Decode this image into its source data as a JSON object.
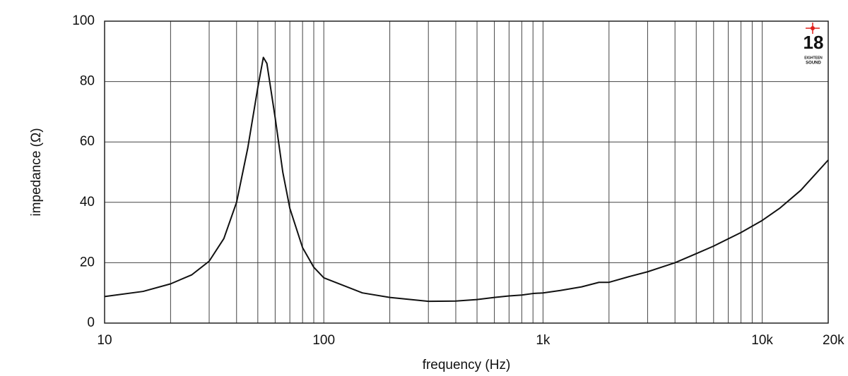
{
  "chart_data": {
    "type": "line",
    "xlabel": "frequency (Hz)",
    "ylabel": "impedance (Ω)",
    "xscale": "log",
    "xlim": [
      10,
      20000
    ],
    "xticks": [
      10,
      100,
      {
        "value": 1000,
        "label": "1k"
      },
      {
        "value": 10000,
        "label": "10k"
      },
      {
        "value": 20000,
        "label": "20k"
      }
    ],
    "xminor": [
      20,
      30,
      40,
      50,
      60,
      70,
      80,
      90,
      200,
      300,
      400,
      500,
      600,
      700,
      800,
      900,
      2000,
      3000,
      4000,
      5000,
      6000,
      7000,
      8000,
      9000
    ],
    "ylim": [
      0,
      100
    ],
    "yticks": [
      0,
      20,
      40,
      60,
      80,
      100
    ],
    "grid": true,
    "series": [
      {
        "color": "#111111",
        "x": [
          10,
          15,
          20,
          25,
          30,
          35,
          40,
          45,
          50,
          53,
          55,
          60,
          65,
          70,
          80,
          90,
          100,
          150,
          200,
          300,
          400,
          500,
          600,
          700,
          800,
          900,
          1000,
          1200,
          1500,
          1800,
          2000,
          2500,
          3000,
          4000,
          5000,
          6000,
          8000,
          10000,
          12000,
          15000,
          20000
        ],
        "values": [
          8.8,
          10.5,
          13,
          16,
          20.5,
          28,
          40,
          58,
          78,
          88,
          86,
          68,
          50,
          38,
          25,
          18.5,
          15,
          10,
          8.5,
          7.2,
          7.3,
          7.8,
          8.5,
          9,
          9.3,
          9.8,
          10,
          10.8,
          12,
          13.5,
          13.5,
          15.5,
          17,
          20,
          23,
          25.5,
          30,
          34,
          38,
          44,
          54
        ]
      }
    ]
  },
  "logo": {
    "number": "18",
    "line1": "EIGHTEEN",
    "line2": "SOUND"
  }
}
